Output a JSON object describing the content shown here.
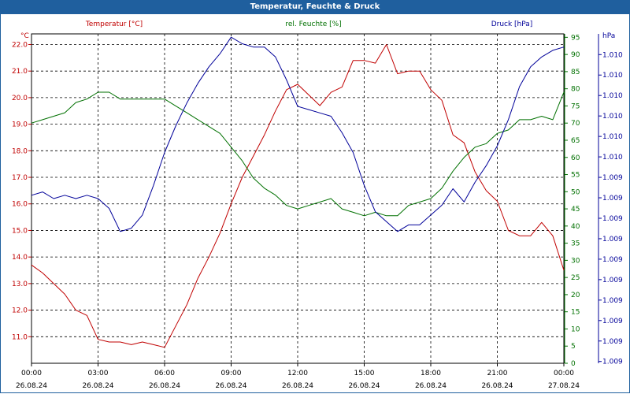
{
  "window": {
    "title": "Temperatur, Feuchte & Druck"
  },
  "colors": {
    "temperature": "#c00000",
    "humidity": "#007000",
    "pressure": "#000099",
    "grid": "#000000",
    "titlebar": "#1f5f9e"
  },
  "chart_data": {
    "type": "line",
    "title": "Temperatur, Feuchte & Druck",
    "x_ticks": [
      {
        "time": "00:00",
        "date": "26.08.24"
      },
      {
        "time": "03:00",
        "date": "26.08.24"
      },
      {
        "time": "06:00",
        "date": "26.08.24"
      },
      {
        "time": "09:00",
        "date": "26.08.24"
      },
      {
        "time": "12:00",
        "date": "26.08.24"
      },
      {
        "time": "15:00",
        "date": "26.08.24"
      },
      {
        "time": "18:00",
        "date": "26.08.24"
      },
      {
        "time": "21:00",
        "date": "26.08.24"
      },
      {
        "time": "00:00",
        "date": "27.08.24"
      }
    ],
    "xlim": [
      0,
      24
    ],
    "axes": {
      "temperature": {
        "label": "Temperatur [°C]",
        "unit": "°C",
        "ylim": [
          10.0,
          22.4
        ],
        "ticks": [
          "11.0",
          "12.0",
          "13.0",
          "14.0",
          "15.0",
          "16.0",
          "17.0",
          "18.0",
          "19.0",
          "20.0",
          "21.0",
          "22.0"
        ]
      },
      "humidity": {
        "label": "rel. Feuchte [%]",
        "unit": "%",
        "ylim": [
          0,
          96
        ],
        "ticks": [
          "0",
          "5",
          "10",
          "15",
          "20",
          "25",
          "30",
          "35",
          "40",
          "45",
          "50",
          "55",
          "60",
          "65",
          "70",
          "75",
          "80",
          "85",
          "90",
          "95"
        ]
      },
      "pressure": {
        "label": "Druck [hPa]",
        "unit": "hPa",
        "ylim": [
          0,
          10.0
        ],
        "ticks": [
          "1.009",
          "1.009",
          "1.009",
          "1.009",
          "1.009",
          "1.009",
          "1.009",
          "1.009",
          "1.009",
          "1.009",
          "1.010",
          "1.010",
          "1.010",
          "1.010",
          "1.010",
          "1.010"
        ]
      }
    },
    "series": [
      {
        "name": "Temperatur [°C]",
        "axis": "temperature",
        "x": [
          0,
          0.5,
          1,
          1.5,
          2,
          2.5,
          3,
          3.5,
          4,
          4.5,
          5,
          5.5,
          6,
          6.5,
          7,
          7.5,
          8,
          8.5,
          9,
          9.5,
          10,
          10.5,
          11,
          11.5,
          12,
          12.5,
          13,
          13.5,
          14,
          14.5,
          15,
          15.5,
          16,
          16.5,
          17,
          17.5,
          18,
          18.5,
          19,
          19.5,
          20,
          20.5,
          21,
          21.5,
          22,
          22.5,
          23,
          23.5,
          24
        ],
        "values": [
          13.7,
          13.4,
          13.0,
          12.6,
          12.0,
          11.8,
          10.9,
          10.8,
          10.8,
          10.7,
          10.8,
          10.7,
          10.6,
          11.4,
          12.2,
          13.2,
          14.0,
          14.9,
          16.0,
          17.0,
          17.8,
          18.6,
          19.5,
          20.3,
          20.5,
          20.1,
          19.7,
          20.2,
          20.4,
          21.4,
          21.4,
          21.3,
          22.0,
          20.9,
          21.0,
          21.0,
          20.3,
          19.9,
          18.6,
          18.3,
          17.2,
          16.5,
          16.1,
          15.0,
          14.8,
          14.8,
          15.3,
          14.8,
          13.5
        ]
      },
      {
        "name": "rel. Feuchte [%]",
        "axis": "humidity",
        "x": [
          0,
          0.5,
          1,
          1.5,
          2,
          2.5,
          3,
          3.5,
          4,
          4.5,
          5,
          5.5,
          6,
          6.5,
          7,
          7.5,
          8,
          8.5,
          9,
          9.5,
          10,
          10.5,
          11,
          11.5,
          12,
          12.5,
          13,
          13.5,
          14,
          14.5,
          15,
          15.5,
          16,
          16.5,
          17,
          17.5,
          18,
          18.5,
          19,
          19.5,
          20,
          20.5,
          21,
          21.5,
          22,
          22.5,
          23,
          23.5,
          24
        ],
        "values": [
          70,
          71,
          72,
          73,
          76,
          77,
          79,
          79,
          77,
          77,
          77,
          77,
          77,
          75,
          73,
          71,
          69,
          67,
          63,
          59,
          54,
          51,
          49,
          46,
          45,
          46,
          47,
          48,
          45,
          44,
          43,
          44,
          43,
          43,
          46,
          47,
          48,
          51,
          56,
          60,
          63,
          64,
          67,
          68,
          71,
          71,
          72,
          71,
          79
        ]
      },
      {
        "name": "Druck [hPa]",
        "axis": "pressure",
        "x": [
          0,
          0.5,
          1,
          1.5,
          2,
          2.5,
          3,
          3.5,
          4,
          4.5,
          5,
          5.5,
          6,
          6.5,
          7,
          7.5,
          8,
          8.5,
          9,
          9.5,
          10,
          10.5,
          11,
          11.5,
          12,
          12.5,
          13,
          13.5,
          14,
          14.5,
          15,
          15.5,
          16,
          16.5,
          17,
          17.5,
          18,
          18.5,
          19,
          19.5,
          20,
          20.5,
          21,
          21.5,
          22,
          22.5,
          23,
          23.5,
          24
        ],
        "values": [
          5.1,
          5.2,
          5.0,
          5.1,
          5.0,
          5.1,
          5.0,
          4.7,
          4.0,
          4.1,
          4.5,
          5.4,
          6.4,
          7.2,
          7.9,
          8.5,
          9.0,
          9.4,
          9.9,
          9.7,
          9.6,
          9.6,
          9.3,
          8.6,
          7.8,
          7.7,
          7.6,
          7.5,
          7.0,
          6.4,
          5.4,
          4.6,
          4.3,
          4.0,
          4.2,
          4.2,
          4.5,
          4.8,
          5.3,
          4.9,
          5.5,
          6.0,
          6.6,
          7.4,
          8.4,
          9.0,
          9.3,
          9.5,
          9.6
        ]
      }
    ]
  }
}
